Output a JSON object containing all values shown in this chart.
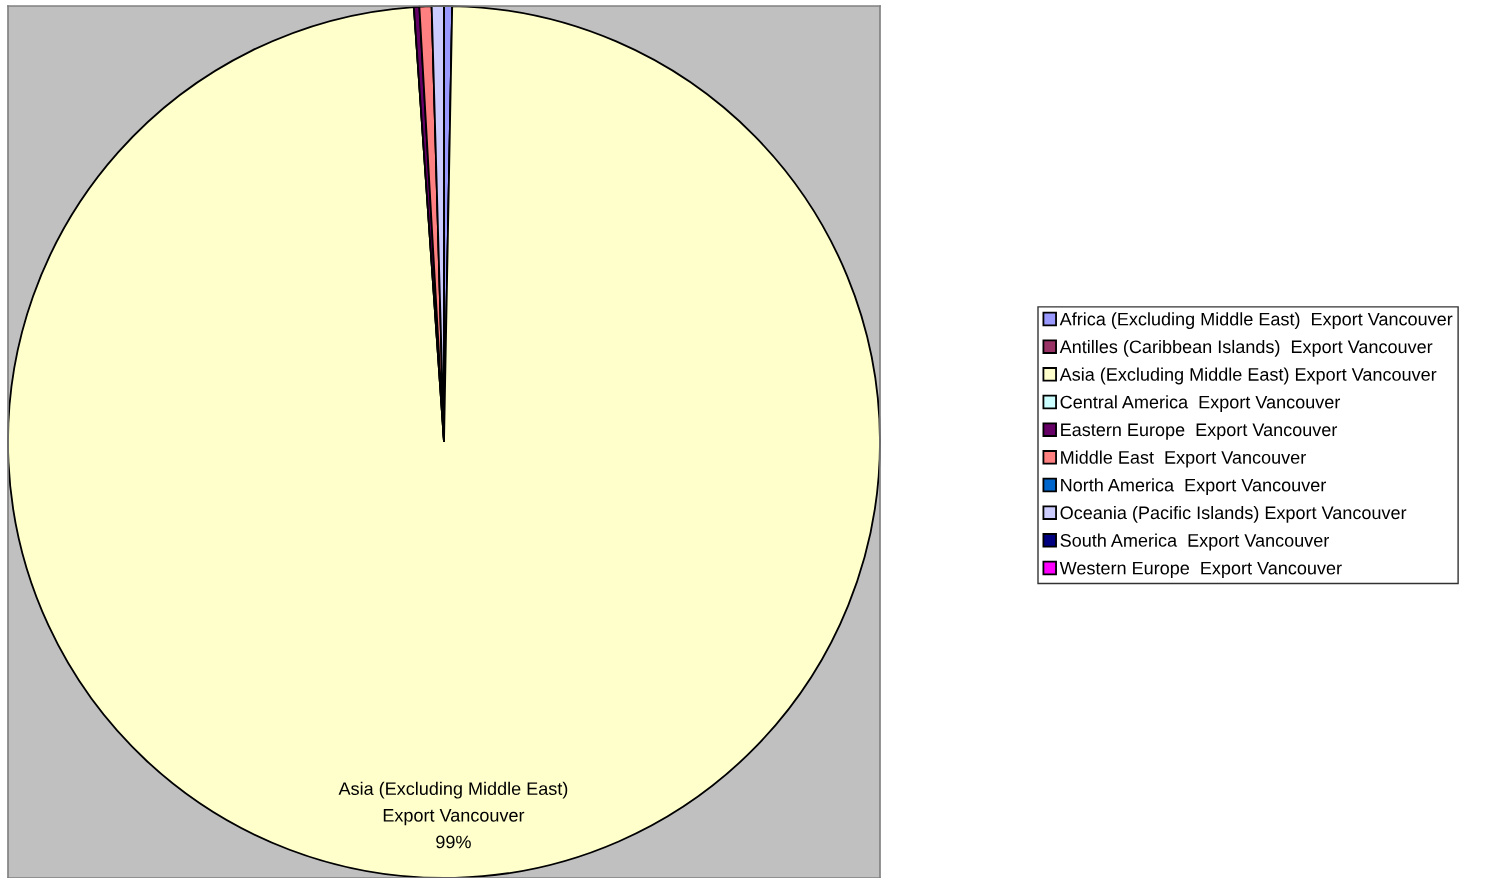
{
  "chart_data": {
    "type": "pie",
    "categories": [
      "Africa (Excluding Middle East)  Export Vancouver",
      "Antilles (Caribbean Islands)  Export Vancouver",
      "Asia (Excluding Middle East) Export Vancouver",
      "Central America  Export Vancouver",
      "Eastern Europe  Export Vancouver",
      "Middle East  Export Vancouver",
      "North America  Export Vancouver",
      "Oceania (Pacific Islands) Export Vancouver",
      "South America  Export Vancouver",
      "Western Europe  Export Vancouver"
    ],
    "values": [
      0.3,
      0,
      98.6,
      0,
      0.2,
      0.45,
      0,
      0.45,
      0,
      0
    ],
    "colors": [
      "#9999ff",
      "#993366",
      "#ffffcc",
      "#ccffff",
      "#660066",
      "#ff8080",
      "#0066cc",
      "#ccccff",
      "#000080",
      "#ff00ff"
    ],
    "value_labels": [
      null,
      null,
      "Asia (Excluding Middle East)\nExport Vancouver\n99%",
      null,
      null,
      null,
      null,
      null,
      null,
      null
    ],
    "legend": "right"
  }
}
